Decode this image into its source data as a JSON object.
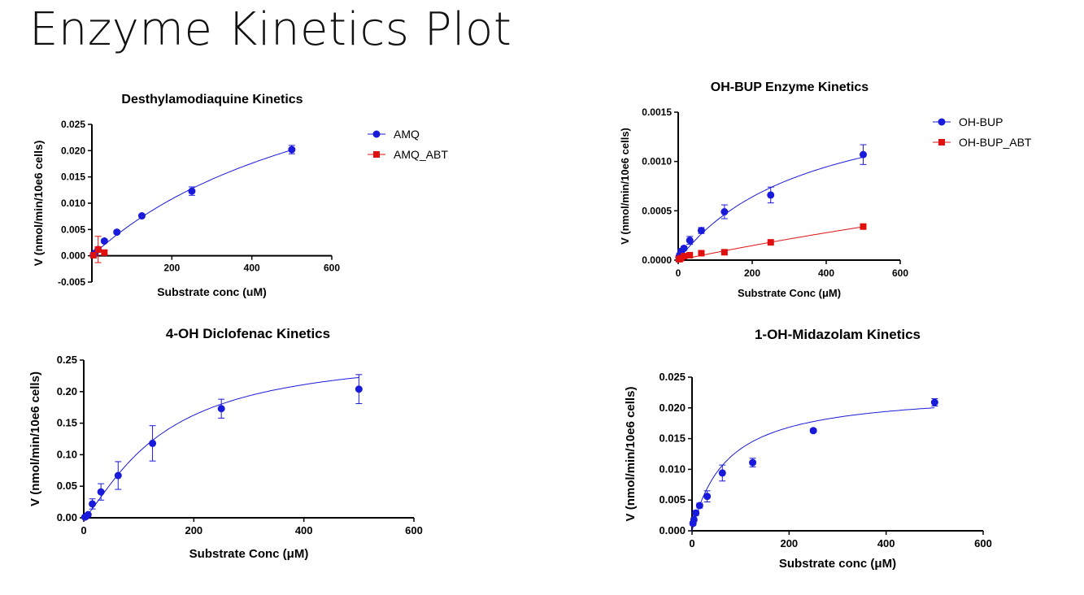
{
  "slide": {
    "title": "Enzyme Kinetics Plot"
  },
  "colors": {
    "blue": "#1a1adb",
    "red": "#e01010"
  },
  "chart_data": [
    {
      "type": "scatter",
      "title": "Desthylamodiaquine Kinetics",
      "xlabel": "Substrate conc (uM)",
      "ylabel": "V (nmol/min/10e6 cells)",
      "xlim": [
        0,
        600
      ],
      "ylim": [
        -0.005,
        0.025
      ],
      "xticks": [
        200,
        400,
        600
      ],
      "yticks": [
        -0.005,
        0,
        0.005,
        0.01,
        0.015,
        0.02,
        0.025
      ],
      "ytick_labels": [
        "-0.005",
        "0.000",
        "0.005",
        "0.010",
        "0.015",
        "0.020",
        "0.025"
      ],
      "grid": false,
      "legend_position": "right",
      "series": [
        {
          "name": "AMQ",
          "color": "#1a1adb",
          "marker": "circle",
          "x": [
            3.9,
            7.8,
            15.6,
            31.25,
            62.5,
            125,
            250,
            500
          ],
          "y": [
            0.0002,
            0.0005,
            0.0012,
            0.0028,
            0.0045,
            0.0076,
            0.0123,
            0.0202
          ],
          "err": [
            0.0002,
            0.0002,
            0.0004,
            0.0003,
            0.0003,
            0.0003,
            0.0008,
            0.0008
          ],
          "fit": {
            "model": "michaelis-menten",
            "vmax": 0.0476,
            "km": 682
          }
        },
        {
          "name": "AMQ_ABT",
          "color": "#e01010",
          "marker": "square",
          "x": [
            3.9,
            15.6,
            31.25
          ],
          "y": [
            0.0001,
            0.0012,
            0.0006
          ],
          "err": [
            0.0002,
            0.0025,
            0.0004
          ],
          "fit": null
        }
      ]
    },
    {
      "type": "scatter",
      "title": "OH-BUP Enzyme Kinetics",
      "xlabel": "Substrate Conc (μM)",
      "ylabel": "V (nmol/min/10e6 cells)",
      "xlim": [
        0,
        600
      ],
      "ylim": [
        0,
        0.0015
      ],
      "xticks": [
        0,
        200,
        400,
        600
      ],
      "yticks": [
        0,
        0.0005,
        0.001,
        0.0015
      ],
      "ytick_labels": [
        "0.0000",
        "0.0005",
        "0.0010",
        "0.0015"
      ],
      "grid": false,
      "legend_position": "right",
      "series": [
        {
          "name": "OH-BUP",
          "color": "#1a1adb",
          "marker": "circle",
          "x": [
            1.95,
            3.9,
            7.8,
            15.6,
            31.25,
            62.5,
            125,
            250,
            500
          ],
          "y": [
            3e-05,
            5e-05,
            9e-05,
            0.00012,
            0.0002,
            0.0003,
            0.00049,
            0.00066,
            0.00107
          ],
          "err": [
            1e-05,
            2e-05,
            2e-05,
            2e-05,
            4e-05,
            3e-05,
            7e-05,
            8e-05,
            0.0001
          ],
          "fit": {
            "model": "michaelis-menten",
            "vmax": 0.0018,
            "km": 362
          }
        },
        {
          "name": "OH-BUP_ABT",
          "color": "#e01010",
          "marker": "square",
          "x": [
            1.95,
            3.9,
            7.8,
            15.6,
            31.25,
            62.5,
            125,
            250,
            500
          ],
          "y": [
            1e-05,
            1e-05,
            2e-05,
            4e-05,
            5e-05,
            7e-05,
            8e-05,
            0.00018,
            0.00034
          ],
          "err": [
            0,
            0,
            0,
            0,
            0,
            0,
            0,
            1e-05,
            1e-05
          ],
          "fit": {
            "model": "michaelis-menten",
            "vmax": 0.0025,
            "km": 3200
          }
        }
      ]
    },
    {
      "type": "scatter",
      "title": "4-OH Diclofenac Kinetics",
      "xlabel": "Substrate Conc (μM)",
      "ylabel": "V (nmol/min/10e6 cells)",
      "xlim": [
        0,
        600
      ],
      "ylim": [
        0,
        0.25
      ],
      "xticks": [
        0,
        200,
        400,
        600
      ],
      "yticks": [
        0,
        0.05,
        0.1,
        0.15,
        0.2,
        0.25
      ],
      "ytick_labels": [
        "0.00",
        "0.05",
        "0.10",
        "0.15",
        "0.20",
        "0.25"
      ],
      "grid": false,
      "legend_position": "none",
      "series": [
        {
          "name": "",
          "color": "#1a1adb",
          "marker": "circle",
          "x": [
            1.95,
            3.9,
            7.8,
            15.6,
            31.25,
            62.5,
            125,
            250,
            500
          ],
          "y": [
            0.001,
            0.002,
            0.005,
            0.022,
            0.041,
            0.067,
            0.118,
            0.173,
            0.204
          ],
          "err": [
            0.001,
            0.001,
            0.002,
            0.008,
            0.013,
            0.022,
            0.028,
            0.015,
            0.023
          ],
          "fit": {
            "model": "michaelis-menten-sigmoid",
            "vmax": 0.265,
            "km": 140,
            "hill": 1.3
          }
        }
      ]
    },
    {
      "type": "scatter",
      "title": "1-OH-Midazolam Kinetics",
      "xlabel": "Substrate conc (μM)",
      "ylabel": "V (nmol/min/10e6 cells)",
      "xlim": [
        0,
        600
      ],
      "ylim": [
        0,
        0.025
      ],
      "xticks": [
        0,
        200,
        400,
        600
      ],
      "yticks": [
        0,
        0.005,
        0.01,
        0.015,
        0.02,
        0.025
      ],
      "ytick_labels": [
        "0.000",
        "0.005",
        "0.010",
        "0.015",
        "0.020",
        "0.025"
      ],
      "grid": false,
      "legend_position": "none",
      "series": [
        {
          "name": "",
          "color": "#1a1adb",
          "marker": "circle",
          "x": [
            1.95,
            3.9,
            7.8,
            15.6,
            31.25,
            62.5,
            125,
            250,
            500
          ],
          "y": [
            0.0012,
            0.0018,
            0.0029,
            0.0041,
            0.0056,
            0.0094,
            0.0111,
            0.0163,
            0.0209
          ],
          "err": [
            0.0003,
            0.0003,
            0.0004,
            0.0004,
            0.0009,
            0.0013,
            0.0007,
            0.0003,
            0.0006
          ],
          "fit": {
            "model": "michaelis-menten",
            "vmax": 0.0229,
            "km": 72
          }
        }
      ]
    }
  ]
}
